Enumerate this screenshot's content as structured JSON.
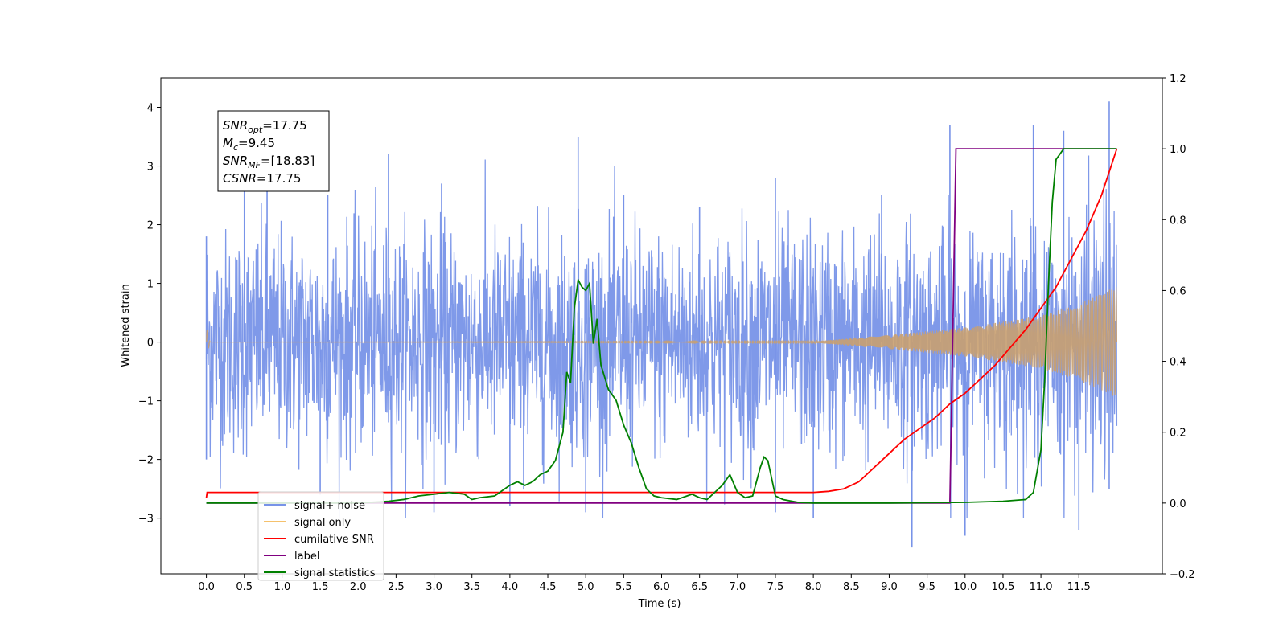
{
  "chart_data": {
    "type": "line",
    "xlabel": "Time (s)",
    "ylabel": "Whitened strain",
    "xlim": [
      -0.6,
      12.6
    ],
    "ylim_left": [
      -3.95,
      4.5
    ],
    "ylim_right": [
      -0.2,
      1.2
    ],
    "x_ticks": [
      0.0,
      0.5,
      1.0,
      1.5,
      2.0,
      2.5,
      3.0,
      3.5,
      4.0,
      4.5,
      5.0,
      5.5,
      6.0,
      6.5,
      7.0,
      7.5,
      8.0,
      8.5,
      9.0,
      9.5,
      10.0,
      10.5,
      11.0,
      11.5
    ],
    "x_tick_labels": [
      "0.0",
      "0.5",
      "1.0",
      "1.5",
      "2.0",
      "2.5",
      "3.0",
      "3.5",
      "4.0",
      "4.5",
      "5.0",
      "5.5",
      "6.0",
      "6.5",
      "7.0",
      "7.5",
      "8.0",
      "8.5",
      "9.0",
      "9.5",
      "10.0",
      "10.5",
      "11.0",
      "11.5"
    ],
    "y_left_ticks": [
      -3,
      -2,
      -1,
      0,
      1,
      2,
      3,
      4
    ],
    "y_left_tick_labels": [
      "−3",
      "−2",
      "−1",
      "0",
      "1",
      "2",
      "3",
      "4"
    ],
    "y_right_ticks": [
      -0.2,
      0.0,
      0.2,
      0.4,
      0.6,
      0.8,
      1.0,
      1.2
    ],
    "y_right_tick_labels": [
      "−0.2",
      "0.0",
      "0.2",
      "0.4",
      "0.6",
      "0.8",
      "1.0",
      "1.2"
    ],
    "grid": false,
    "legend_placement": "lower-left",
    "stats_box": {
      "lines": [
        {
          "main": "SNR",
          "sub": "opt",
          "value": "=17.75"
        },
        {
          "main": "M",
          "sub": "c",
          "value": "=9.45"
        },
        {
          "main": "SNR",
          "sub": "MF",
          "value": "=[18.83]"
        },
        {
          "main": "CSNR",
          "sub": "",
          "value": "=17.75"
        }
      ]
    },
    "series": [
      {
        "name": "signal+ noise",
        "axis": "left",
        "color": "#7893e8",
        "note_envelope": "noise band roughly ±1.3 with spikes to about ±2.6, occasional peaks to 4.1",
        "x_range": [
          0.0,
          12.0
        ],
        "envelope_peaks": [
          [
            0.0,
            1.8
          ],
          [
            0.5,
            2.9
          ],
          [
            0.8,
            2.6
          ],
          [
            1.6,
            2.5
          ],
          [
            2.4,
            3.2
          ],
          [
            3.1,
            2.7
          ],
          [
            4.9,
            3.5
          ],
          [
            5.5,
            2.5
          ],
          [
            6.5,
            2.3
          ],
          [
            7.5,
            2.8
          ],
          [
            8.9,
            2.5
          ],
          [
            9.8,
            3.7
          ],
          [
            10.9,
            3.7
          ],
          [
            11.3,
            3.6
          ],
          [
            11.9,
            4.1
          ]
        ],
        "envelope_troughs": [
          [
            0.0,
            -2.0
          ],
          [
            1.5,
            -2.6
          ],
          [
            3.0,
            -2.9
          ],
          [
            4.0,
            -2.8
          ],
          [
            5.0,
            -2.9
          ],
          [
            7.5,
            -2.9
          ],
          [
            8.0,
            -3.0
          ],
          [
            9.3,
            -3.5
          ],
          [
            10.0,
            -3.3
          ],
          [
            11.5,
            -3.2
          ],
          [
            11.9,
            -2.5
          ]
        ]
      },
      {
        "name": "signal only",
        "axis": "left",
        "color": "#f5c16c",
        "amplitude_envelope": [
          [
            0.0,
            0.25
          ],
          [
            0.05,
            0.0
          ],
          [
            8.0,
            0.01
          ],
          [
            9.0,
            0.12
          ],
          [
            10.0,
            0.25
          ],
          [
            11.0,
            0.45
          ],
          [
            11.5,
            0.65
          ],
          [
            12.0,
            0.95
          ]
        ]
      },
      {
        "name": "cumilative SNR",
        "axis": "right",
        "color": "#ff0000",
        "x": [
          0.0,
          0.01,
          8.0,
          8.2,
          8.4,
          8.6,
          8.8,
          9.0,
          9.2,
          9.4,
          9.6,
          9.8,
          10.0,
          10.2,
          10.4,
          10.6,
          10.8,
          11.0,
          11.2,
          11.4,
          11.6,
          11.8,
          12.0
        ],
        "values": [
          0.015,
          0.03,
          0.03,
          0.033,
          0.04,
          0.06,
          0.1,
          0.14,
          0.18,
          0.21,
          0.24,
          0.28,
          0.31,
          0.35,
          0.39,
          0.44,
          0.49,
          0.55,
          0.61,
          0.69,
          0.77,
          0.87,
          1.0
        ]
      },
      {
        "name": "label",
        "axis": "right",
        "color": "#800080",
        "x": [
          0.0,
          9.8,
          9.88,
          12.0
        ],
        "values": [
          0.0,
          0.0,
          1.0,
          1.0
        ]
      },
      {
        "name": "signal statistics",
        "axis": "right",
        "color": "#008000",
        "x": [
          0.0,
          1.0,
          2.0,
          2.4,
          2.6,
          2.8,
          3.0,
          3.2,
          3.4,
          3.5,
          3.6,
          3.8,
          4.0,
          4.1,
          4.2,
          4.3,
          4.4,
          4.5,
          4.6,
          4.7,
          4.75,
          4.8,
          4.85,
          4.9,
          4.95,
          5.0,
          5.05,
          5.1,
          5.15,
          5.2,
          5.3,
          5.4,
          5.5,
          5.6,
          5.7,
          5.8,
          5.9,
          6.0,
          6.2,
          6.4,
          6.5,
          6.6,
          6.8,
          6.9,
          7.0,
          7.1,
          7.2,
          7.3,
          7.35,
          7.4,
          7.5,
          7.6,
          7.8,
          8.0,
          9.0,
          10.0,
          10.5,
          10.8,
          10.9,
          11.0,
          11.05,
          11.1,
          11.15,
          11.2,
          11.3,
          11.5,
          12.0
        ],
        "values": [
          0.0,
          0.0,
          0.0,
          0.005,
          0.01,
          0.02,
          0.025,
          0.03,
          0.025,
          0.01,
          0.015,
          0.02,
          0.05,
          0.06,
          0.05,
          0.06,
          0.08,
          0.09,
          0.12,
          0.2,
          0.37,
          0.34,
          0.55,
          0.63,
          0.61,
          0.6,
          0.62,
          0.45,
          0.52,
          0.39,
          0.32,
          0.29,
          0.22,
          0.17,
          0.1,
          0.04,
          0.02,
          0.015,
          0.01,
          0.025,
          0.015,
          0.01,
          0.05,
          0.08,
          0.03,
          0.015,
          0.02,
          0.1,
          0.13,
          0.12,
          0.02,
          0.01,
          0.002,
          0.0,
          0.0,
          0.002,
          0.005,
          0.01,
          0.03,
          0.15,
          0.35,
          0.62,
          0.85,
          0.97,
          1.0,
          1.0,
          1.0
        ]
      }
    ],
    "legend_overlap_note": "a faint duplicate entry appears behind the legend"
  }
}
